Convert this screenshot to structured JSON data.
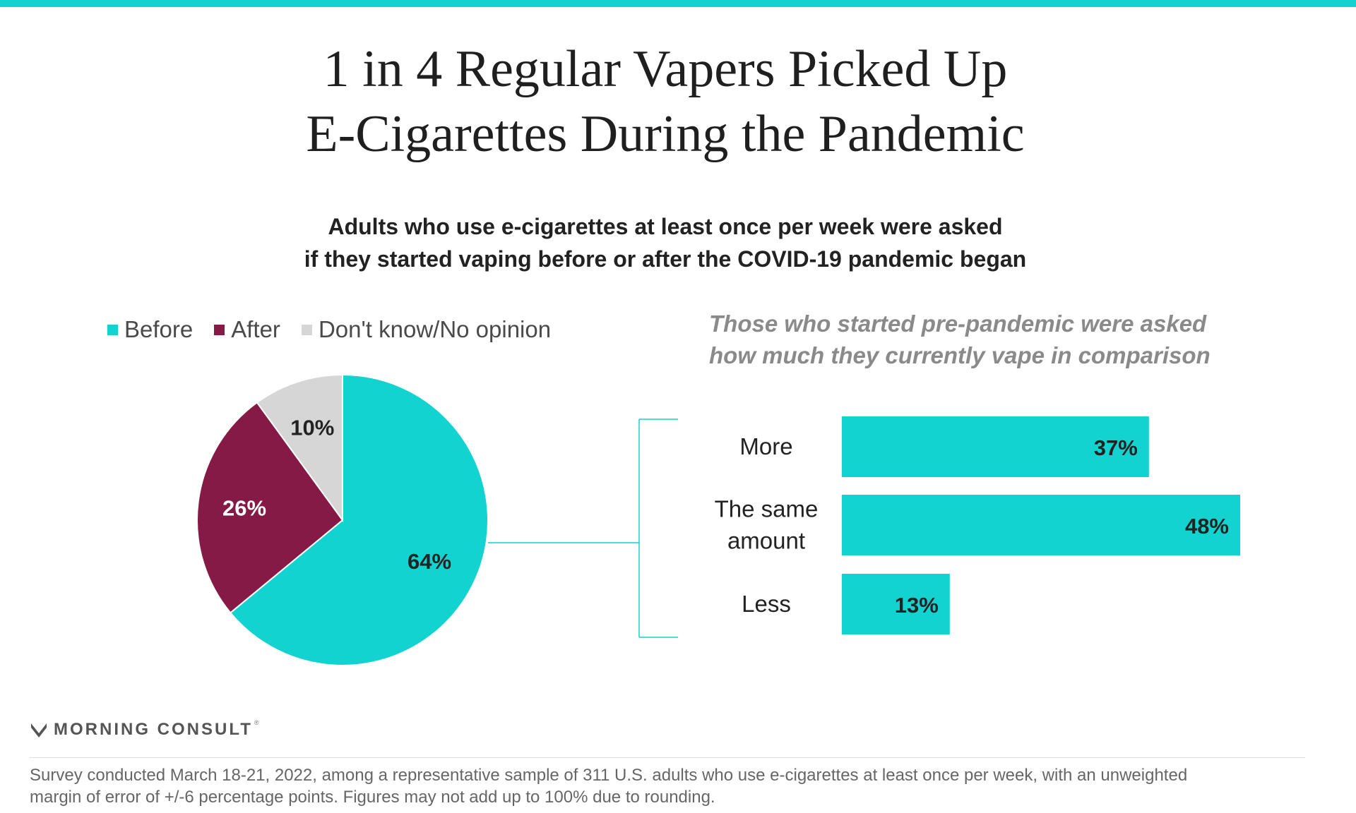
{
  "title": {
    "line1": "1 in 4 Regular Vapers Picked Up",
    "line2": "E-Cigarettes During the Pandemic"
  },
  "subtitle": {
    "line1": "Adults who use e-cigarettes at least once per week were asked",
    "line2": "if they started vaping before or after the COVID-19 pandemic began"
  },
  "colors": {
    "accent": "#12d3cf",
    "after": "#851a47",
    "unknown": "#d6d6d6"
  },
  "chart_data": [
    {
      "type": "pie",
      "title": "",
      "legend_placement": "top",
      "slices": [
        {
          "name": "Before",
          "value": 64,
          "label": "64%",
          "color": "#12d3cf"
        },
        {
          "name": "After",
          "value": 26,
          "label": "26%",
          "color": "#851a47"
        },
        {
          "name": "Don't know/No opinion",
          "value": 10,
          "label": "10%",
          "color": "#d6d6d6"
        }
      ]
    },
    {
      "type": "bar",
      "orientation": "horizontal",
      "title": "Those who started pre-pandemic were asked how much they currently vape in comparison",
      "title_lines": [
        "Those who started pre-pandemic were asked",
        "how much they currently vape in comparison"
      ],
      "categories": [
        "More",
        "The same amount",
        "Less"
      ],
      "category_lines": [
        [
          "More"
        ],
        [
          "The same",
          "amount"
        ],
        [
          "Less"
        ]
      ],
      "values": [
        37,
        48,
        13
      ],
      "labels": [
        "37%",
        "48%",
        "13%"
      ],
      "xlim": [
        0,
        100
      ],
      "color": "#12d3cf",
      "grid": false
    }
  ],
  "brand": {
    "name": "MORNING CONSULT",
    "reg": "®",
    "logo_icon": "morning-consult-logo-icon"
  },
  "footnote": {
    "line1": "Survey conducted March 18-21, 2022, among a representative sample of 311 U.S. adults who use e-cigarettes at least once per week, with an unweighted",
    "line2": "margin of error of +/-6 percentage points. Figures may not add up to 100% due to rounding."
  }
}
